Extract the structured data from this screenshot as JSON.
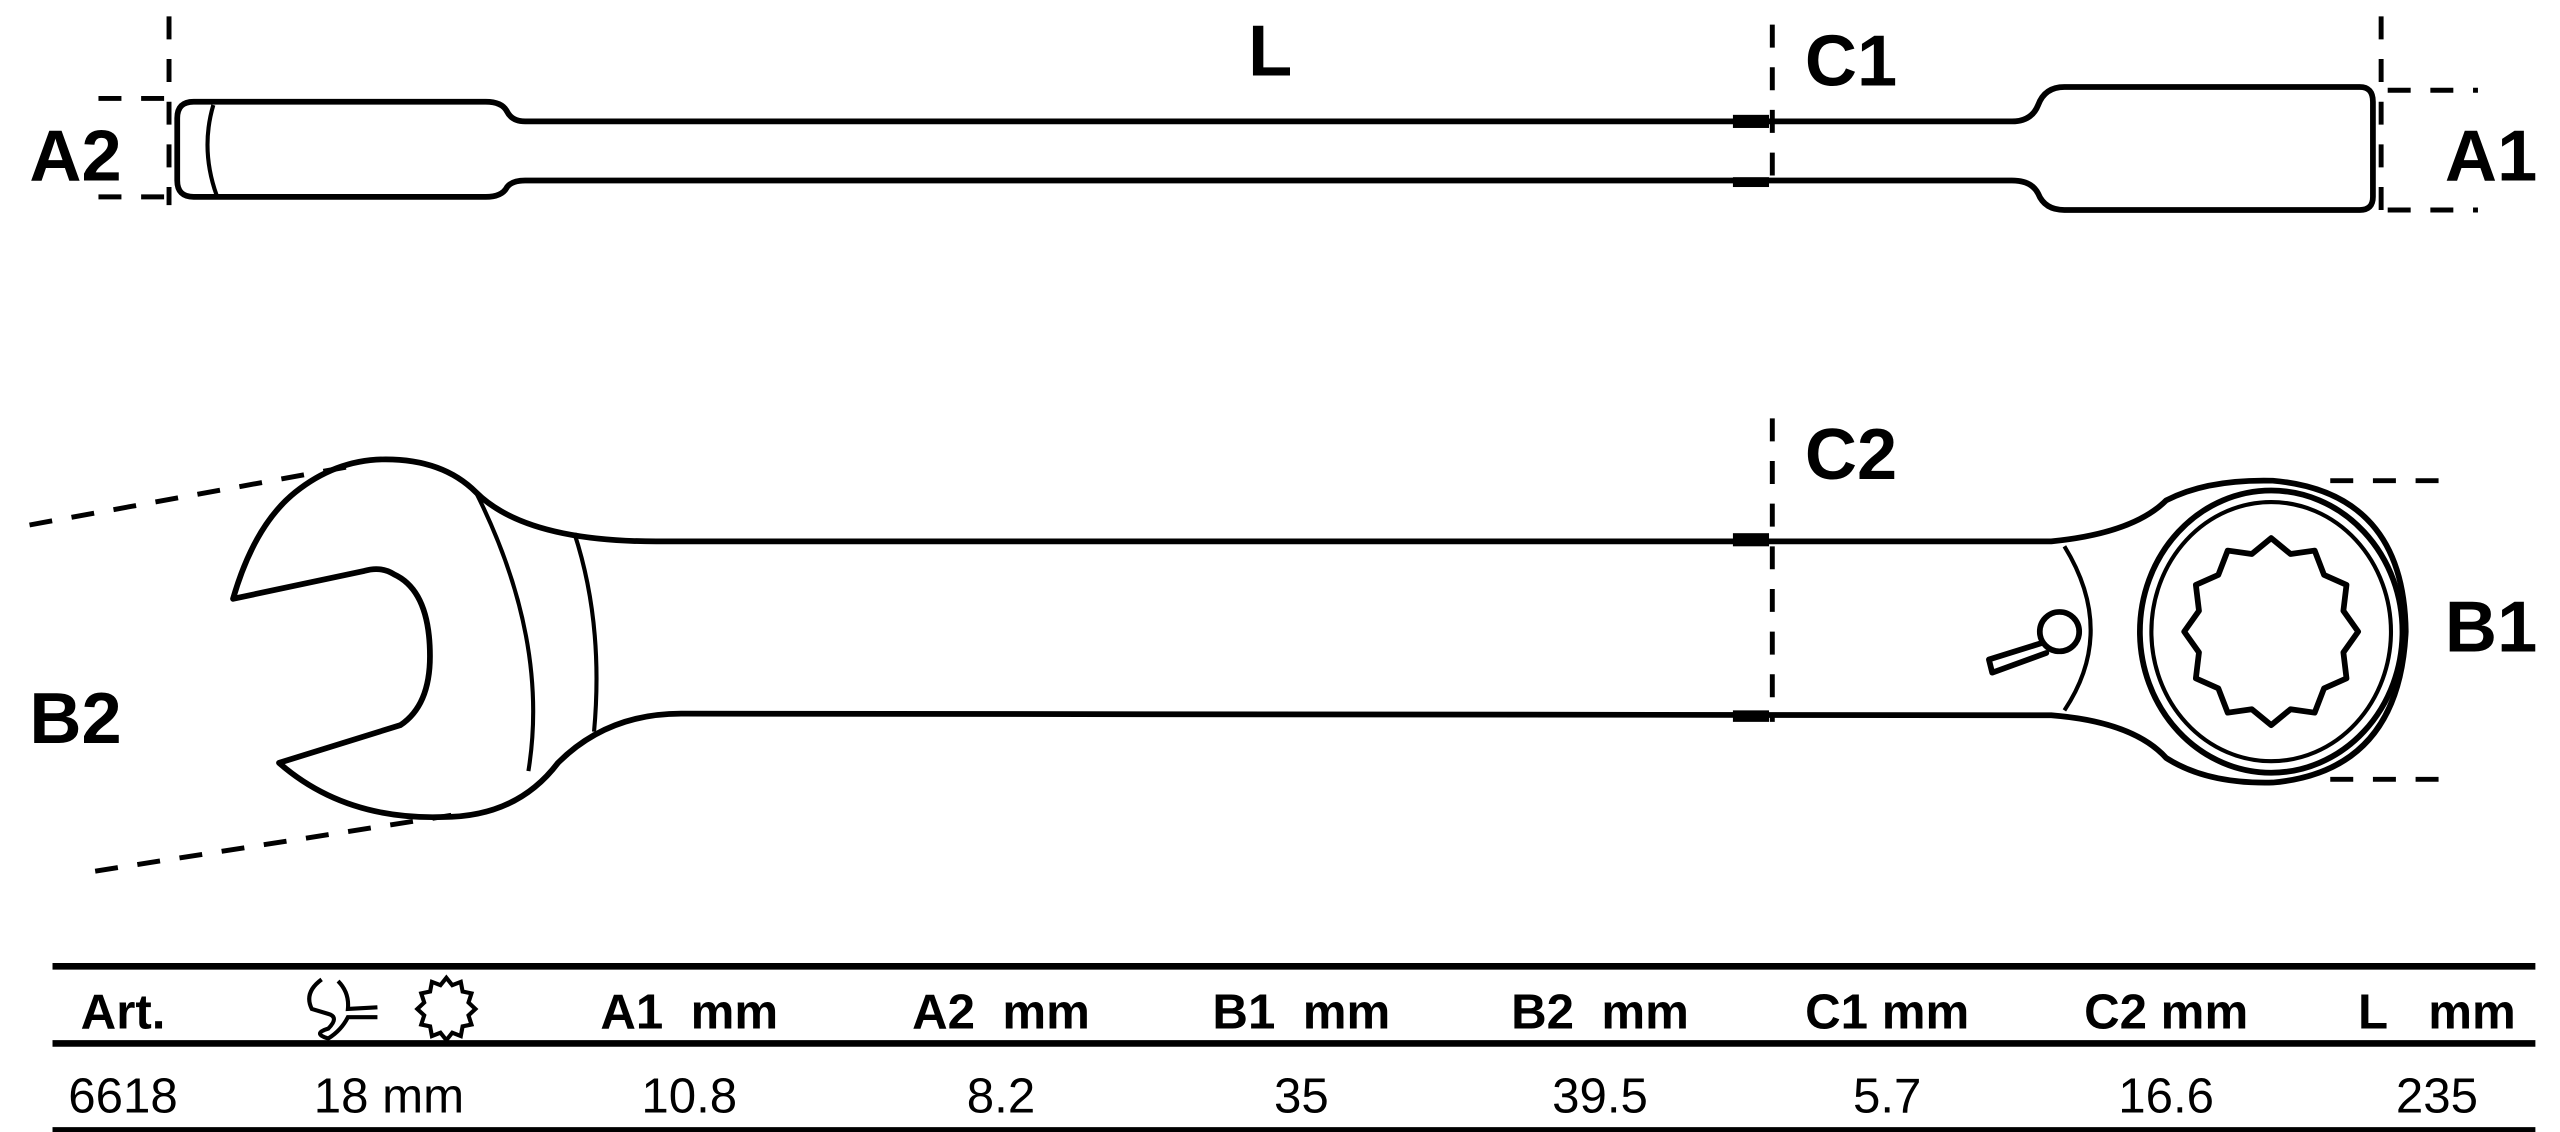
{
  "labels": {
    "L": "L",
    "C1": "C1",
    "C2": "C2",
    "A1": "A1",
    "A2": "A2",
    "B1": "B1",
    "B2": "B2"
  },
  "table": {
    "headers": [
      "Art.",
      "open-end-and-12-point-ring-icons",
      "A1  mm",
      "A2  mm",
      "B1  mm",
      "B2  mm",
      "C1 mm",
      "C2 mm",
      "L   mm"
    ],
    "rows": [
      [
        "6618",
        "18 mm",
        "10.8",
        "8.2",
        "35",
        "39.5",
        "5.7",
        "16.6",
        "235"
      ]
    ]
  },
  "colors": {
    "line": "#000000",
    "background": "#ffffff"
  }
}
